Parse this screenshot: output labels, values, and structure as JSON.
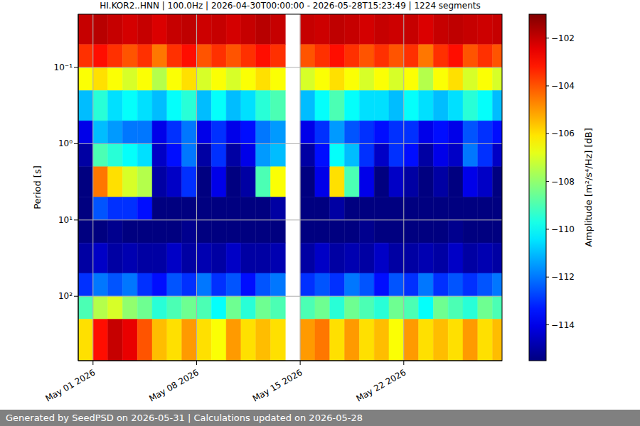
{
  "chart_data": {
    "type": "heatmap",
    "title": "HI.KOR2..HNN | 100.0Hz | 2026-04-30T00:00:00 - 2026-05-28T15:23:49 | 1224 segments",
    "y_label": "Period [s]",
    "footer": "Generated by SeedPSD on 2026-05-31 | Calculations updated on 2026-05-28",
    "log": "y",
    "grid": true,
    "x": [
      "2026-04-30",
      "2026-05-01",
      "2026-05-02",
      "2026-05-03",
      "2026-05-04",
      "2026-05-05",
      "2026-05-06",
      "2026-05-07",
      "2026-05-08",
      "2026-05-09",
      "2026-05-10",
      "2026-05-11",
      "2026-05-12",
      "2026-05-13",
      "2026-05-14",
      "2026-05-15",
      "2026-05-16",
      "2026-05-17",
      "2026-05-18",
      "2026-05-19",
      "2026-05-20",
      "2026-05-21",
      "2026-05-22",
      "2026-05-23",
      "2026-05-24",
      "2026-05-25",
      "2026-05-26",
      "2026-05-27",
      "2026-05-28"
    ],
    "xlim": [
      "2026-04-30T00:00:00",
      "2026-05-28T15:23:49"
    ],
    "xticks": [
      {
        "value": "2026-05-01",
        "label": "May 01 2026"
      },
      {
        "value": "2026-05-08",
        "label": "May 08 2026"
      },
      {
        "value": "2026-05-15",
        "label": "May 15 2026"
      },
      {
        "value": "2026-05-22",
        "label": "May 22 2026"
      }
    ],
    "ylim": [
      0.02,
      700
    ],
    "yticks": [
      {
        "value": 0.1,
        "label": "10⁻¹"
      },
      {
        "value": 1,
        "label": "10⁰"
      },
      {
        "value": 10,
        "label": "10¹"
      },
      {
        "value": 100,
        "label": "10²"
      }
    ],
    "y_edges": [
      0.02,
      0.05,
      0.1,
      0.2,
      0.5,
      1,
      2,
      5,
      10,
      20,
      50,
      100,
      200,
      700
    ],
    "cells": [
      [
        -102,
        -101.8,
        -102,
        -102.2,
        -102,
        -102.3,
        -102,
        -101.9,
        -102.1,
        -102,
        -102.2,
        -102,
        -101.8,
        -102,
        null,
        -102,
        -102.1,
        -101.9,
        -102,
        -102.2,
        -102,
        -102.1,
        -102,
        -102.3,
        -102,
        -101.9,
        -102,
        -102.1,
        -102
      ],
      [
        -103.5,
        -103,
        -103.5,
        -104,
        -103.5,
        -104.5,
        -103.5,
        -103,
        -104,
        -103.5,
        -104,
        -103.5,
        -103,
        -103.5,
        null,
        -104,
        -103.5,
        -103,
        -103.5,
        -104,
        -103.5,
        -104,
        -103.5,
        -104.5,
        -103.5,
        -103,
        -104,
        -103.5,
        -104
      ],
      [
        -106.5,
        -106,
        -106.5,
        -107,
        -106.5,
        -107.5,
        -106.5,
        -106,
        -107,
        -106.5,
        -107,
        -106.5,
        -106,
        -106.5,
        null,
        -107,
        -106.5,
        -106,
        -106.5,
        -107,
        -106.5,
        -107,
        -106.5,
        -107.5,
        -106.5,
        -106,
        -107,
        -106.5,
        -107
      ],
      [
        -111,
        -109.5,
        -110.5,
        -110,
        -110.5,
        -111,
        -110,
        -109.5,
        -111,
        -110,
        -111,
        -110.5,
        -109.5,
        -109,
        null,
        -111,
        -110,
        -109,
        -110,
        -110.5,
        -110.5,
        -111,
        -110,
        -110.5,
        -111,
        -110.5,
        -109.5,
        -110,
        -111
      ],
      [
        -114,
        -111,
        -111.5,
        -112,
        -112,
        -114,
        -113,
        -112,
        -114,
        -113,
        -114,
        -113.5,
        -112,
        -111.5,
        null,
        -114,
        -113,
        -111.5,
        -112.5,
        -113,
        -113.5,
        -113,
        -113,
        -114,
        -113.5,
        -114,
        -112.5,
        -113,
        -113.5
      ],
      [
        -115,
        -109,
        -109.5,
        -110,
        -110.5,
        -114.5,
        -113.5,
        -112,
        -115,
        -113,
        -115,
        -114,
        -111.5,
        -111,
        null,
        -115,
        -113.5,
        -110,
        -111,
        -113,
        -114.5,
        -113,
        -113.5,
        -115,
        -114,
        -114.5,
        -112,
        -113,
        -114.5
      ],
      [
        -115.5,
        -104.5,
        -106,
        -107,
        -107.5,
        -115,
        -114.5,
        -113,
        -115.5,
        -114,
        -115.5,
        -115,
        -109,
        -106.5,
        null,
        -115.5,
        -114,
        -106,
        -109,
        -114,
        -115.5,
        -114.5,
        -115,
        -115.5,
        -115,
        -115.5,
        -114,
        -114.5,
        -115.5
      ],
      [
        -115.5,
        -112.5,
        -113,
        -113,
        -113.5,
        -115.5,
        -115.5,
        -115.5,
        -115.5,
        -115.5,
        -115.5,
        -115.5,
        -115.5,
        -115,
        null,
        -115.5,
        -115.5,
        -115,
        -115.5,
        -115.5,
        -115.5,
        -115.5,
        -115.5,
        -115.5,
        -115.5,
        -115.5,
        -115.5,
        -115.5,
        -115.5
      ],
      [
        -115.5,
        -115.5,
        -115.3,
        -115.5,
        -115.5,
        -115.5,
        -115.5,
        -115.3,
        -115.5,
        -115.5,
        -115.5,
        -115.5,
        -115.5,
        -115.5,
        null,
        -115.5,
        -115.5,
        -115.5,
        -115.5,
        -115.3,
        -115.5,
        -115.5,
        -115.5,
        -115.5,
        -115.5,
        -115.3,
        -115.5,
        -115.5,
        -115.5
      ],
      [
        -115,
        -114.5,
        -115,
        -114.8,
        -115,
        -115,
        -114.5,
        -115,
        -114.8,
        -115,
        -114.5,
        -115,
        -115,
        -114.8,
        null,
        -115,
        -114.5,
        -115,
        -114.8,
        -115,
        -114.5,
        -115,
        -115,
        -114.8,
        -115,
        -114.5,
        -115,
        -114.8,
        -115
      ],
      [
        -113,
        -112,
        -112.5,
        -112,
        -113,
        -113.5,
        -112.5,
        -113,
        -112,
        -113,
        -112.5,
        -113.5,
        -112.5,
        -112,
        null,
        -113,
        -112.5,
        -113,
        -112,
        -112.5,
        -113.5,
        -112.5,
        -113,
        -112,
        -113,
        -112.5,
        -113,
        -112.5,
        -112
      ],
      [
        -109,
        -107.5,
        -107,
        -108,
        -108.5,
        -109.5,
        -109,
        -108.5,
        -109,
        -110,
        -108.5,
        -109.5,
        -108.5,
        -109,
        null,
        -109,
        -108.5,
        -109.5,
        -108.5,
        -109,
        -109.5,
        -108.5,
        -109,
        -110,
        -108.5,
        -109,
        -109.5,
        -108.5,
        -109
      ],
      [
        -106,
        -103,
        -102,
        -102.5,
        -104,
        -105.5,
        -106,
        -105,
        -106,
        -106.5,
        -105,
        -106,
        -105.5,
        -106,
        null,
        -105,
        -104.5,
        -106,
        -105,
        -106,
        -105.5,
        -106.5,
        -105,
        -106,
        -105.5,
        -106,
        -105,
        -106,
        -105.5
      ]
    ],
    "colorbar": {
      "label": "Amplitude [m²/s⁴/Hz] [dB]",
      "range": [
        -115.5,
        -101
      ],
      "ticks": [
        {
          "value": -102,
          "label": "−102"
        },
        {
          "value": -104,
          "label": "−104"
        },
        {
          "value": -106,
          "label": "−106"
        },
        {
          "value": -108,
          "label": "−108"
        },
        {
          "value": -110,
          "label": "−110"
        },
        {
          "value": -112,
          "label": "−112"
        },
        {
          "value": -114,
          "label": "−114"
        }
      ]
    }
  }
}
